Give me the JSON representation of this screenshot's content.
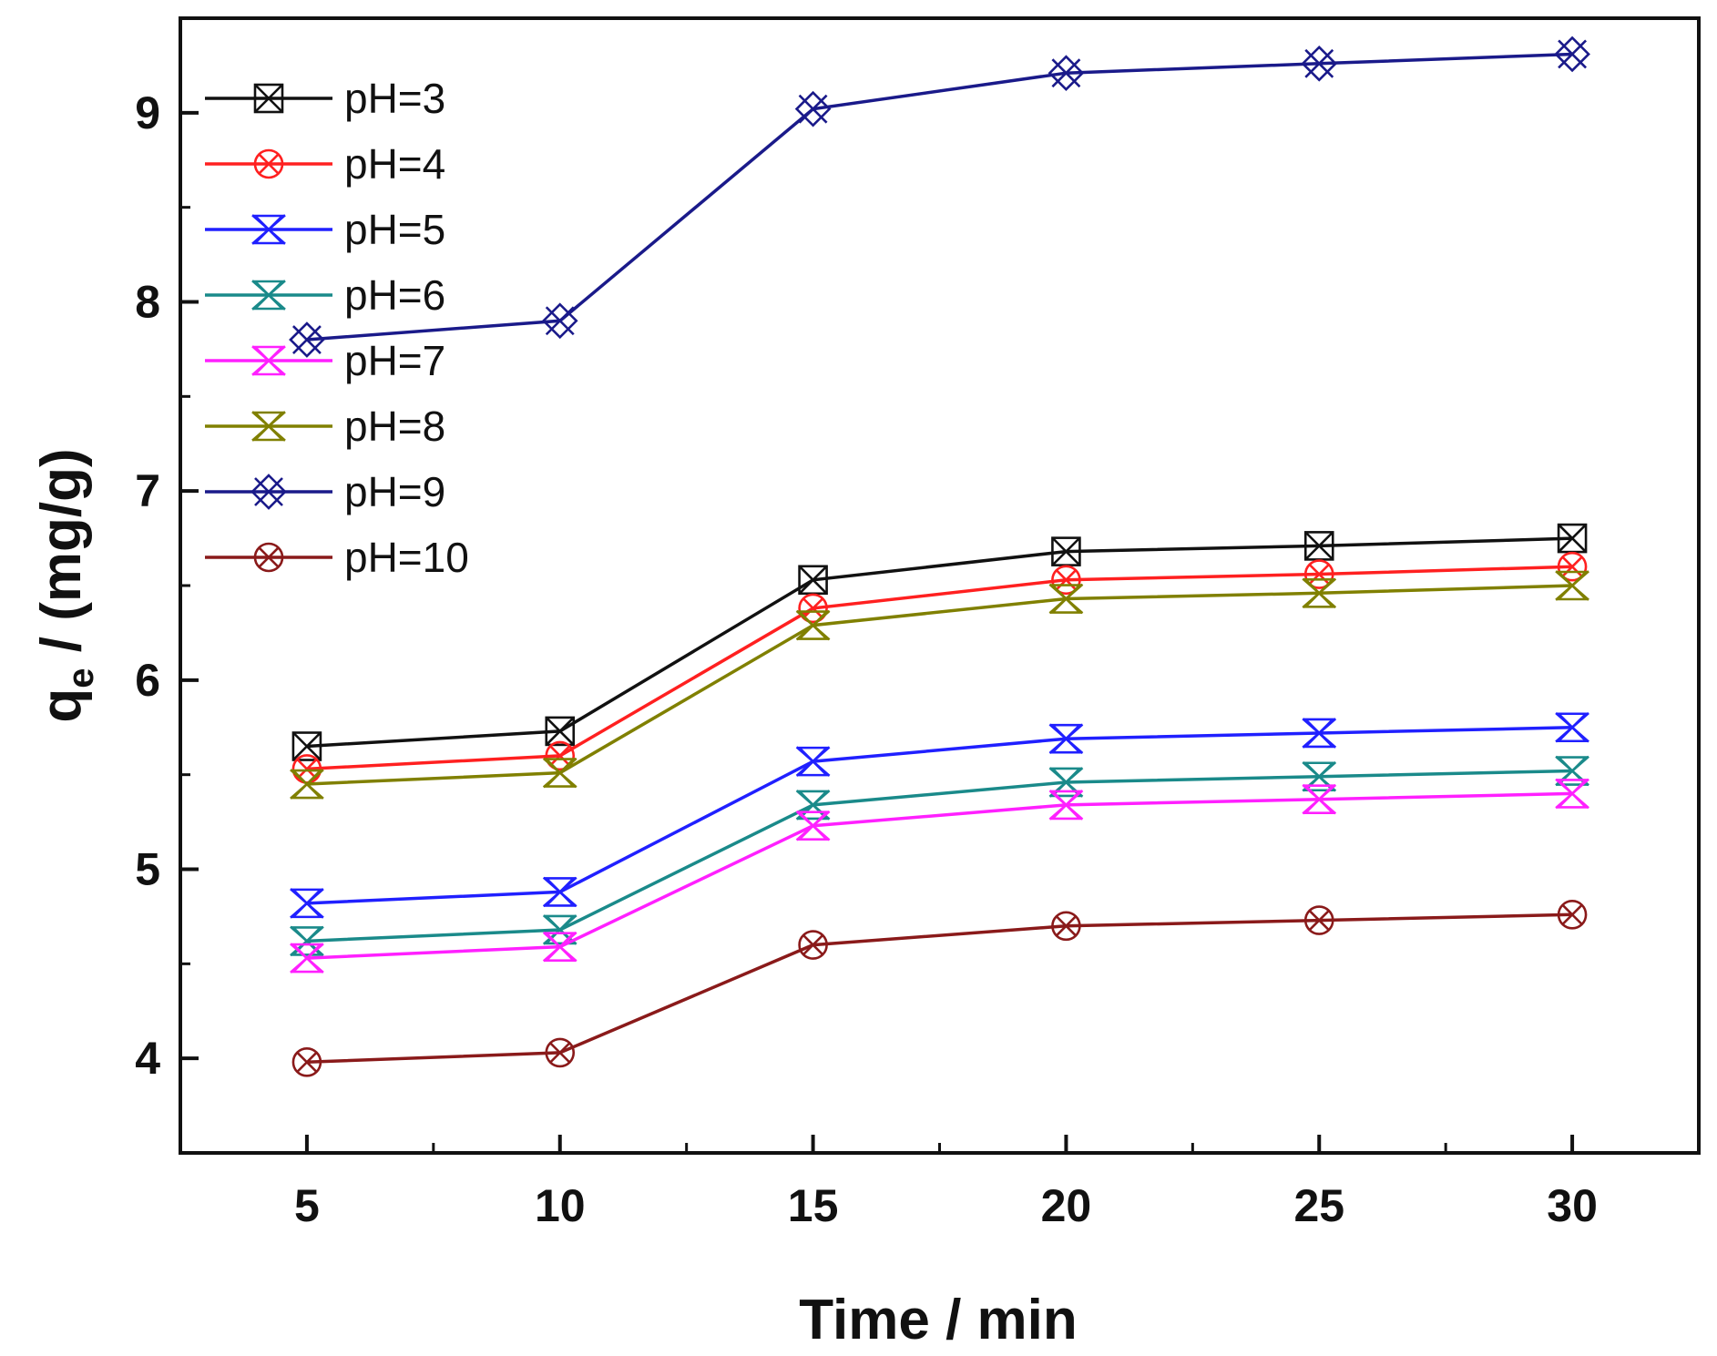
{
  "chart_data": {
    "type": "line",
    "title": "",
    "xlabel": "Time / min",
    "ylabel_main": "q",
    "ylabel_sub": "e",
    "ylabel_rest": " / (mg/g)",
    "x": [
      5,
      10,
      15,
      20,
      25,
      30
    ],
    "xlim": [
      2.5,
      32.5
    ],
    "ylim": [
      3.5,
      9.5
    ],
    "xticks": [
      "5",
      "10",
      "15",
      "20",
      "25",
      "30"
    ],
    "yticks": [
      "4",
      "5",
      "6",
      "7",
      "8",
      "9"
    ],
    "grid": false,
    "legend_position": "top-left",
    "series": [
      {
        "name": "pH=3",
        "color": "#111111",
        "marker": "square-x",
        "values": [
          5.65,
          5.73,
          6.53,
          6.68,
          6.71,
          6.75
        ]
      },
      {
        "name": "pH=4",
        "color": "#ff2020",
        "marker": "circle-x",
        "values": [
          5.53,
          5.6,
          6.38,
          6.53,
          6.56,
          6.6
        ]
      },
      {
        "name": "pH=5",
        "color": "#2020ff",
        "marker": "triangle-x",
        "values": [
          4.82,
          4.88,
          5.57,
          5.69,
          5.72,
          5.75
        ]
      },
      {
        "name": "pH=6",
        "color": "#1a8a8a",
        "marker": "triangle-x",
        "values": [
          4.62,
          4.68,
          5.34,
          5.46,
          5.49,
          5.52
        ]
      },
      {
        "name": "pH=7",
        "color": "#ff20ff",
        "marker": "triangle-x",
        "values": [
          4.53,
          4.59,
          5.23,
          5.34,
          5.37,
          5.4
        ]
      },
      {
        "name": "pH=8",
        "color": "#808000",
        "marker": "triangle-x",
        "values": [
          5.45,
          5.51,
          6.29,
          6.43,
          6.46,
          6.5
        ]
      },
      {
        "name": "pH=9",
        "color": "#1a1a8a",
        "marker": "diamond-x",
        "values": [
          7.8,
          7.9,
          9.02,
          9.21,
          9.26,
          9.31
        ]
      },
      {
        "name": "pH=10",
        "color": "#8a1a1a",
        "marker": "circle-x",
        "values": [
          3.98,
          4.03,
          4.6,
          4.7,
          4.73,
          4.76
        ]
      }
    ]
  }
}
